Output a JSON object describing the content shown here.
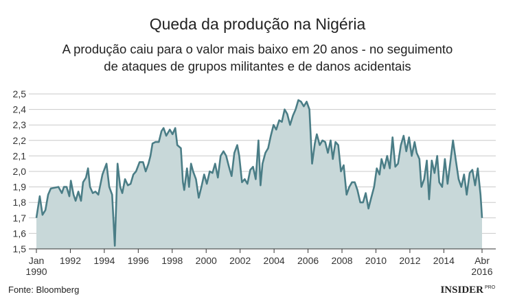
{
  "chart_data": {
    "type": "area_line",
    "title": "Queda da produção na Nigéria",
    "subtitle": [
      "A produção caiu para o valor mais baixo em 20 anos - no seguimento",
      "de ataques de grupos militantes e de danos acidentais"
    ],
    "source": "Fonte: Bloomberg",
    "brand": "INSIDER",
    "brand_sub": "PRO",
    "line_color": "#4a7d86",
    "fill_color": "#c8d8d9",
    "grid": true,
    "xlim": [
      1990,
      2016.25
    ],
    "xticks": [
      {
        "value": 1990,
        "label": "Jan 1990"
      },
      1992,
      1994,
      1996,
      1998,
      2000,
      2002,
      2004,
      2006,
      2008,
      2010,
      2012,
      2014,
      {
        "value": 2016.25,
        "label": "Abr 2016"
      }
    ],
    "ylim": [
      1.5,
      2.5
    ],
    "yticks": [
      {
        "value": 1.5,
        "label": "1,5"
      },
      {
        "value": 1.6,
        "label": "1,6"
      },
      {
        "value": 1.7,
        "label": "1,7"
      },
      {
        "value": 1.8,
        "label": "1,8"
      },
      {
        "value": 1.9,
        "label": "1,9"
      },
      {
        "value": 2.0,
        "label": "2,0"
      },
      {
        "value": 2.1,
        "label": "2,1"
      },
      {
        "value": 2.2,
        "label": "2,2"
      },
      {
        "value": 2.3,
        "label": "2,3"
      },
      {
        "value": 2.4,
        "label": "2,4"
      },
      {
        "value": 2.5,
        "label": "2,5"
      }
    ],
    "x": [
      1990.0,
      1990.2,
      1990.36,
      1990.53,
      1990.69,
      1990.85,
      1991.3,
      1991.5,
      1991.62,
      1991.78,
      1991.94,
      1992.03,
      1992.19,
      1992.31,
      1992.47,
      1992.63,
      1992.75,
      1992.92,
      1993.04,
      1993.16,
      1993.32,
      1993.48,
      1993.65,
      1993.89,
      1994.13,
      1994.29,
      1994.46,
      1994.62,
      1994.78,
      1994.94,
      1995.06,
      1995.22,
      1995.39,
      1995.55,
      1995.71,
      1995.87,
      1996.08,
      1996.28,
      1996.44,
      1996.6,
      1996.72,
      1996.84,
      1997.01,
      1997.21,
      1997.37,
      1997.49,
      1997.65,
      1997.86,
      1998.02,
      1998.18,
      1998.3,
      1998.51,
      1998.63,
      1998.71,
      1998.87,
      1998.99,
      1999.11,
      1999.23,
      1999.4,
      1999.56,
      1999.72,
      1999.88,
      2000.04,
      2000.21,
      2000.37,
      2000.53,
      2000.69,
      2000.85,
      2001.02,
      2001.18,
      2001.34,
      2001.5,
      2001.66,
      2001.83,
      2001.95,
      2002.11,
      2002.27,
      2002.43,
      2002.6,
      2002.76,
      2002.92,
      2003.08,
      2003.2,
      2003.32,
      2003.49,
      2003.65,
      2003.81,
      2003.97,
      2004.13,
      2004.3,
      2004.46,
      2004.62,
      2004.78,
      2004.94,
      2005.11,
      2005.27,
      2005.43,
      2005.59,
      2005.75,
      2005.92,
      2006.08,
      2006.24,
      2006.4,
      2006.52,
      2006.69,
      2006.85,
      2007.01,
      2007.17,
      2007.33,
      2007.46,
      2007.62,
      2007.78,
      2007.94,
      2008.1,
      2008.27,
      2008.43,
      2008.59,
      2008.75,
      2008.91,
      2009.08,
      2009.24,
      2009.4,
      2009.56,
      2009.72,
      2009.89,
      2010.05,
      2010.21,
      2010.33,
      2010.49,
      2010.66,
      2010.82,
      2010.98,
      2011.14,
      2011.3,
      2011.47,
      2011.63,
      2011.79,
      2011.95,
      2012.11,
      2012.28,
      2012.4,
      2012.56,
      2012.68,
      2012.84,
      2013.0,
      2013.13,
      2013.29,
      2013.45,
      2013.61,
      2013.73,
      2013.9,
      2014.06,
      2014.22,
      2014.38,
      2014.54,
      2014.71,
      2014.87,
      2015.03,
      2015.19,
      2015.35,
      2015.52,
      2015.68,
      2015.84,
      2016.0,
      2016.16,
      2016.25
    ],
    "values": [
      1.7,
      1.84,
      1.72,
      1.75,
      1.85,
      1.89,
      1.9,
      1.86,
      1.9,
      1.9,
      1.84,
      1.94,
      1.85,
      1.81,
      1.87,
      1.81,
      1.93,
      1.96,
      2.02,
      1.9,
      1.86,
      1.87,
      1.85,
      1.98,
      2.05,
      1.9,
      1.85,
      1.52,
      2.05,
      1.9,
      1.86,
      1.95,
      1.91,
      1.92,
      1.98,
      2.0,
      2.06,
      2.06,
      2.0,
      2.05,
      2.1,
      2.18,
      2.19,
      2.19,
      2.26,
      2.28,
      2.23,
      2.27,
      2.24,
      2.28,
      2.17,
      2.15,
      1.93,
      1.88,
      2.02,
      1.9,
      2.05,
      2.0,
      1.95,
      1.83,
      1.9,
      1.98,
      1.92,
      2.0,
      1.99,
      2.05,
      1.96,
      2.1,
      2.13,
      2.1,
      2.03,
      1.97,
      2.12,
      2.17,
      2.1,
      1.93,
      1.95,
      1.92,
      2.01,
      2.03,
      1.95,
      2.2,
      1.91,
      2.05,
      2.12,
      2.15,
      2.23,
      2.3,
      2.27,
      2.33,
      2.32,
      2.4,
      2.37,
      2.3,
      2.36,
      2.4,
      2.46,
      2.45,
      2.42,
      2.45,
      2.4,
      2.05,
      2.18,
      2.24,
      2.17,
      2.2,
      2.19,
      2.12,
      2.2,
      2.08,
      2.19,
      2.17,
      2.0,
      2.04,
      1.85,
      1.9,
      1.93,
      1.93,
      1.88,
      1.8,
      1.8,
      1.86,
      1.76,
      1.83,
      1.9,
      2.02,
      1.98,
      2.08,
      2.02,
      2.1,
      2.02,
      2.22,
      2.03,
      2.05,
      2.17,
      2.23,
      2.13,
      2.22,
      2.1,
      2.19,
      2.12,
      2.08,
      1.9,
      1.95,
      2.07,
      1.82,
      2.07,
      1.99,
      2.1,
      1.93,
      1.9,
      2.08,
      1.92,
      2.06,
      2.2,
      2.07,
      1.95,
      1.9,
      1.98,
      1.85,
      1.99,
      2.01,
      1.91,
      2.02,
      1.85,
      1.7
    ]
  }
}
